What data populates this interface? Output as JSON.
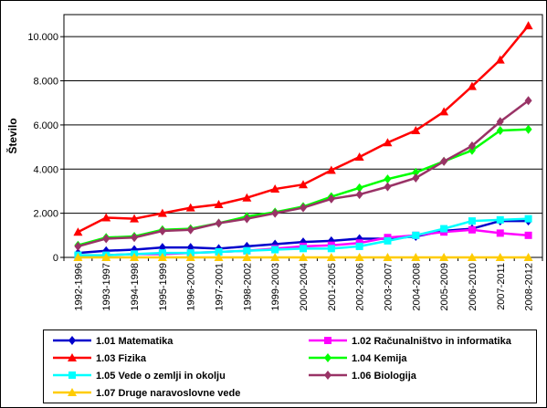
{
  "chart_data": {
    "type": "line",
    "title": "",
    "xlabel": "",
    "ylabel": "Število",
    "ylim": [
      0,
      10000
    ],
    "yticks": [
      0,
      2000,
      4000,
      6000,
      8000,
      10000
    ],
    "ytick_labels": [
      "0",
      "2.000",
      "4.000",
      "6.000",
      "8.000",
      "10.000"
    ],
    "grid": "horizontal",
    "legend_position": "bottom",
    "categories": [
      "1992-1996",
      "1993-1997",
      "1994-1998",
      "1995-1999",
      "1996-2000",
      "1997-2001",
      "1998-2002",
      "1999-2003",
      "2000-2004",
      "2001-2005",
      "2002-2006",
      "2003-2007",
      "2004-2008",
      "2005-2009",
      "2006-2010",
      "2007-2011",
      "2008-2012"
    ],
    "series": [
      {
        "name": "1.01 Matematika",
        "color": "#0000cc",
        "marker": "diamond",
        "values": [
          200,
          300,
          350,
          450,
          450,
          400,
          500,
          600,
          700,
          750,
          850,
          850,
          950,
          1200,
          1300,
          1650,
          1650
        ]
      },
      {
        "name": "1.02 Računalništvo in informatika",
        "color": "#ff00ff",
        "marker": "square",
        "values": [
          50,
          100,
          150,
          150,
          200,
          250,
          300,
          400,
          500,
          550,
          650,
          900,
          1000,
          1150,
          1250,
          1100,
          1000
        ]
      },
      {
        "name": "1.03 Fizika",
        "color": "#ff0000",
        "marker": "triangle",
        "values": [
          1150,
          1800,
          1750,
          2000,
          2250,
          2400,
          2700,
          3100,
          3300,
          3950,
          4550,
          5200,
          5750,
          6600,
          7750,
          8950,
          10500
        ]
      },
      {
        "name": "1.04 Kemija",
        "color": "#00ff00",
        "marker": "diamond",
        "values": [
          550,
          900,
          950,
          1250,
          1300,
          1550,
          1850,
          2050,
          2300,
          2750,
          3150,
          3550,
          3850,
          4350,
          4850,
          5750,
          5800
        ]
      },
      {
        "name": "1.05 Vede o zemlji in okolju",
        "color": "#00ffff",
        "marker": "square",
        "values": [
          100,
          100,
          150,
          200,
          200,
          250,
          300,
          350,
          400,
          400,
          500,
          750,
          1000,
          1300,
          1650,
          1700,
          1750
        ]
      },
      {
        "name": "1.06 Biologija",
        "color": "#993366",
        "marker": "diamond",
        "values": [
          500,
          850,
          900,
          1200,
          1250,
          1550,
          1750,
          2000,
          2250,
          2650,
          2850,
          3200,
          3600,
          4350,
          5050,
          6150,
          7100
        ]
      },
      {
        "name": "1.07 Druge naravoslovne vede",
        "color": "#ffcc00",
        "marker": "triangle",
        "values": [
          0,
          0,
          0,
          0,
          0,
          0,
          0,
          0,
          0,
          0,
          0,
          0,
          0,
          0,
          0,
          0,
          0
        ]
      }
    ]
  }
}
